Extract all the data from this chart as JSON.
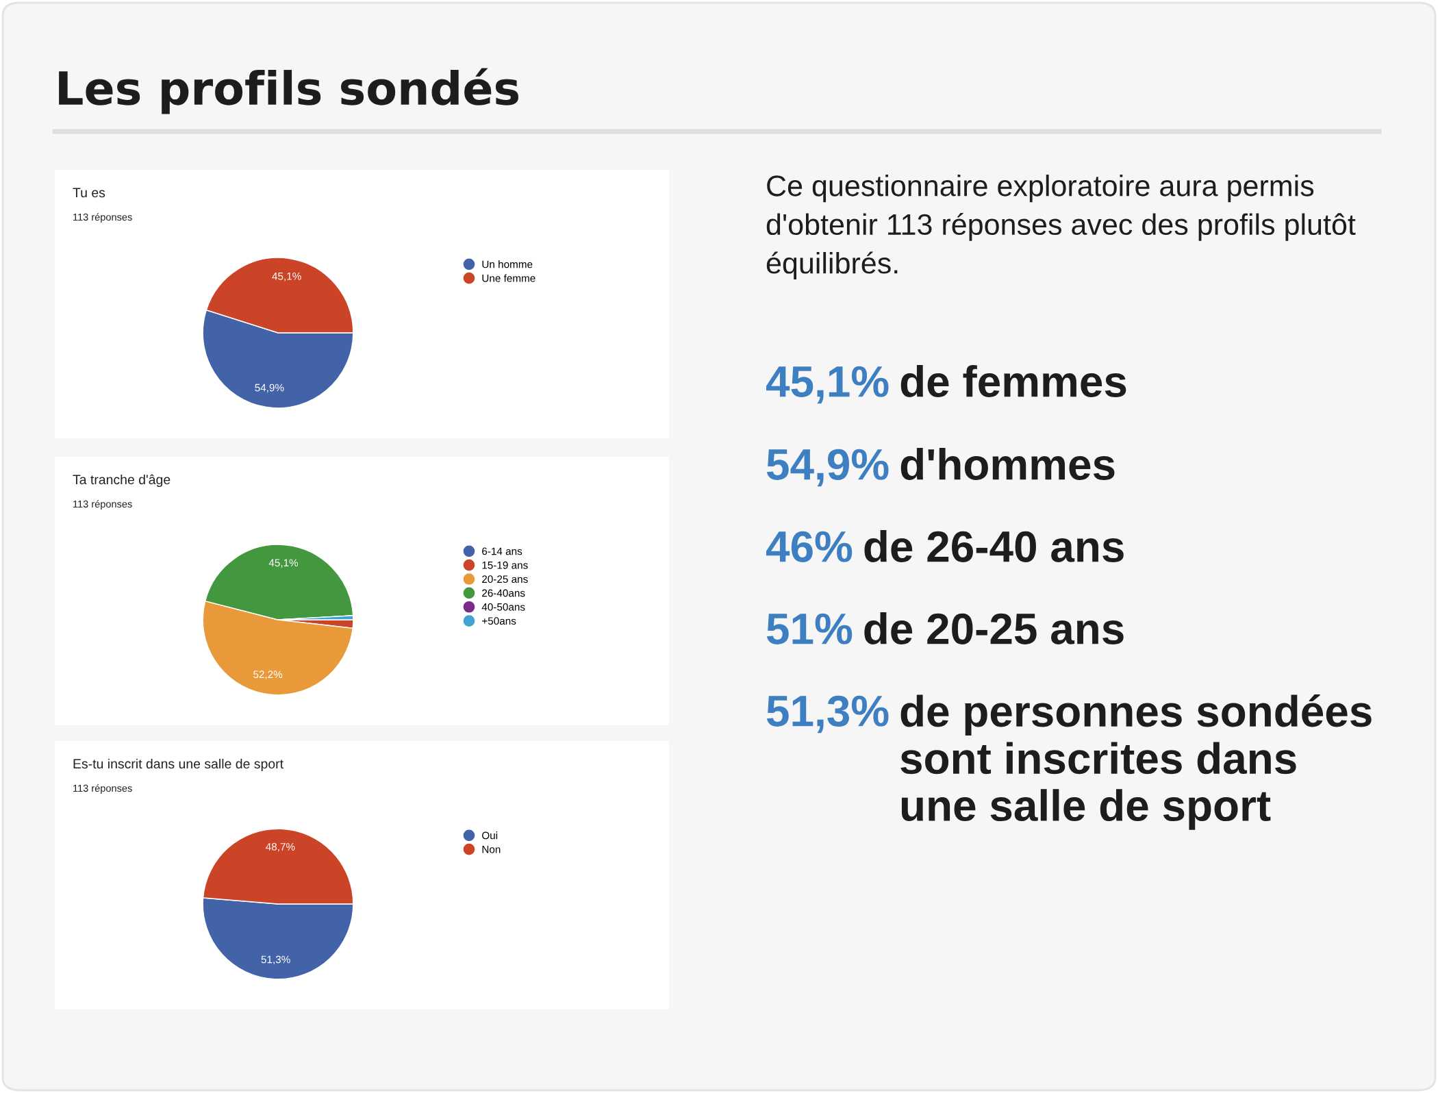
{
  "chart_data": [
    {
      "type": "pie",
      "title": "Tu es",
      "subtitle": "113 réponses",
      "categories": [
        "Un homme",
        "Une femme"
      ],
      "values": [
        54.9,
        45.1
      ],
      "colors": [
        "#4363a8",
        "#cc4427"
      ],
      "value_labels": [
        "54,9%",
        "45,1%"
      ],
      "legend": "right"
    },
    {
      "type": "pie",
      "title": "Ta tranche d'âge",
      "subtitle": "113 réponses",
      "categories": [
        "6-14 ans",
        "15-19 ans",
        "20-25 ans",
        "26-40ans",
        "40-50ans",
        "+50ans"
      ],
      "values": [
        0,
        1.8,
        52.2,
        45.1,
        0,
        0.9
      ],
      "colors": [
        "#4363a8",
        "#cc4427",
        "#e8993a",
        "#43973f",
        "#7b2a8a",
        "#3fa4d1"
      ],
      "value_labels": [
        null,
        null,
        "52,2%",
        "45,1%",
        null,
        null
      ],
      "legend": "right"
    },
    {
      "type": "pie",
      "title": "Es-tu inscrit dans une salle de sport",
      "subtitle": "113 réponses",
      "categories": [
        "Oui",
        "Non"
      ],
      "values": [
        51.3,
        48.7
      ],
      "colors": [
        "#4363a8",
        "#cc4427"
      ],
      "value_labels": [
        "51,3%",
        "48,7%"
      ],
      "legend": "right"
    },
    {
      "type": "other",
      "title": "Les profils sondés",
      "annotations": [
        "Ce questionnaire exploratoire aura permis d'obtenir 113 réponses avec des profils plutôt équilibrés.",
        "45,1% de femmes",
        "54,9% d'hommes",
        "46% de 26-40 ans",
        "51% de 20-25 ans",
        "51,3% de personnes sondées sont inscrites dans une salle de sport"
      ]
    }
  ]
}
